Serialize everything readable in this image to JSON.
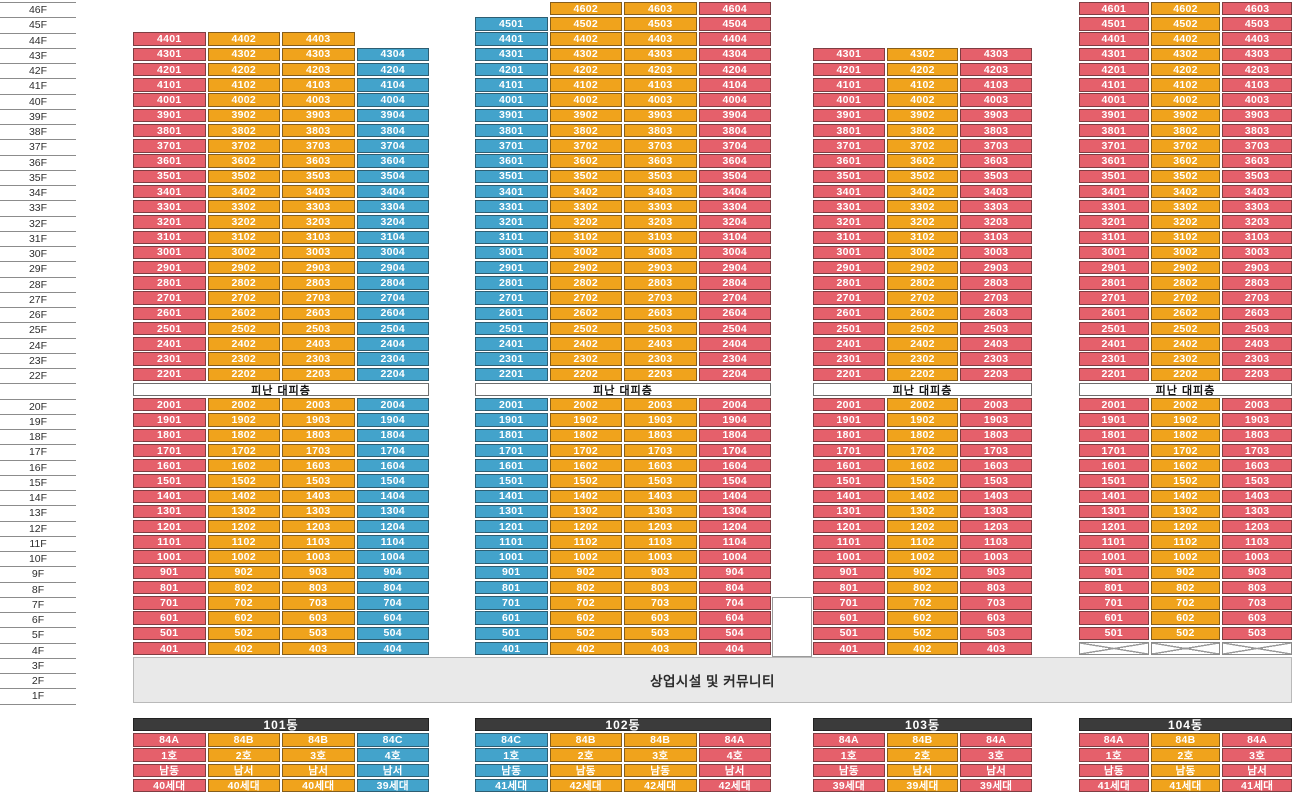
{
  "refuge_label": "피난 대피층",
  "commercial_label": "상업시설 및 커뮤니티",
  "colors": {
    "red": "#E5606B",
    "orange": "#F0A31C",
    "blue": "#43A3CB",
    "legend_header": "#3B3B3B",
    "commercial_bg": "#E9E9E9"
  },
  "floor_axis": [
    "46F",
    "45F",
    "44F",
    "43F",
    "42F",
    "41F",
    "40F",
    "39F",
    "38F",
    "37F",
    "36F",
    "35F",
    "34F",
    "33F",
    "32F",
    "31F",
    "30F",
    "29F",
    "28F",
    "27F",
    "26F",
    "25F",
    "24F",
    "23F",
    "22F",
    "",
    "20F",
    "19F",
    "18F",
    "17F",
    "16F",
    "15F",
    "14F",
    "13F",
    "12F",
    "11F",
    "10F",
    "9F",
    "8F",
    "7F",
    "6F",
    "5F",
    "4F",
    "3F",
    "2F",
    "1F"
  ],
  "buildings": [
    {
      "name": "101동",
      "top_floor": 44,
      "refuge_floor": 21,
      "col_colors": [
        "red",
        "orange",
        "orange",
        "blue"
      ],
      "upper_rows": [
        [
          "4401",
          "4402",
          "4403",
          null
        ],
        [
          "4301",
          "4302",
          "4303",
          "4304"
        ],
        [
          "4201",
          "4202",
          "4203",
          "4204"
        ],
        [
          "4101",
          "4102",
          "4103",
          "4104"
        ],
        [
          "4001",
          "4002",
          "4003",
          "4004"
        ],
        [
          "3901",
          "3902",
          "3903",
          "3904"
        ],
        [
          "3801",
          "3802",
          "3803",
          "3804"
        ],
        [
          "3701",
          "3702",
          "3703",
          "3704"
        ],
        [
          "3601",
          "3602",
          "3603",
          "3604"
        ],
        [
          "3501",
          "3502",
          "3503",
          "3504"
        ],
        [
          "3401",
          "3402",
          "3403",
          "3404"
        ],
        [
          "3301",
          "3302",
          "3303",
          "3304"
        ],
        [
          "3201",
          "3202",
          "3203",
          "3204"
        ],
        [
          "3101",
          "3102",
          "3103",
          "3104"
        ],
        [
          "3001",
          "3002",
          "3003",
          "3004"
        ],
        [
          "2901",
          "2902",
          "2903",
          "2904"
        ],
        [
          "2801",
          "2802",
          "2803",
          "2804"
        ],
        [
          "2701",
          "2702",
          "2703",
          "2704"
        ],
        [
          "2601",
          "2602",
          "2603",
          "2604"
        ],
        [
          "2501",
          "2502",
          "2503",
          "2504"
        ],
        [
          "2401",
          "2402",
          "2403",
          "2404"
        ],
        [
          "2301",
          "2302",
          "2303",
          "2304"
        ],
        [
          "2201",
          "2202",
          "2203",
          "2204"
        ]
      ],
      "lower_rows": [
        [
          "2001",
          "2002",
          "2003",
          "2004"
        ],
        [
          "1901",
          "1902",
          "1903",
          "1904"
        ],
        [
          "1801",
          "1802",
          "1803",
          "1804"
        ],
        [
          "1701",
          "1702",
          "1703",
          "1704"
        ],
        [
          "1601",
          "1602",
          "1603",
          "1604"
        ],
        [
          "1501",
          "1502",
          "1503",
          "1504"
        ],
        [
          "1401",
          "1402",
          "1403",
          "1404"
        ],
        [
          "1301",
          "1302",
          "1303",
          "1304"
        ],
        [
          "1201",
          "1202",
          "1203",
          "1204"
        ],
        [
          "1101",
          "1102",
          "1103",
          "1104"
        ],
        [
          "1001",
          "1002",
          "1003",
          "1004"
        ],
        [
          "901",
          "902",
          "903",
          "904"
        ],
        [
          "801",
          "802",
          "803",
          "804"
        ],
        [
          "701",
          "702",
          "703",
          "704"
        ],
        [
          "601",
          "602",
          "603",
          "604"
        ],
        [
          "501",
          "502",
          "503",
          "504"
        ],
        [
          "401",
          "402",
          "403",
          "404"
        ]
      ],
      "hatched_floors": [],
      "legend": {
        "types": [
          "84A",
          "84B",
          "84B",
          "84C"
        ],
        "units": [
          "1호",
          "2호",
          "3호",
          "4호"
        ],
        "directions": [
          "남동",
          "남서",
          "남서",
          "남서"
        ],
        "counts": [
          "40세대",
          "40세대",
          "40세대",
          "39세대"
        ]
      }
    },
    {
      "name": "102동",
      "top_floor": 46,
      "refuge_floor": 21,
      "col_colors": [
        "blue",
        "orange",
        "orange",
        "red"
      ],
      "upper_rows": [
        [
          null,
          "4602",
          "4603",
          "4604"
        ],
        [
          "4501",
          "4502",
          "4503",
          "4504"
        ],
        [
          "4401",
          "4402",
          "4403",
          "4404"
        ],
        [
          "4301",
          "4302",
          "4303",
          "4304"
        ],
        [
          "4201",
          "4202",
          "4203",
          "4204"
        ],
        [
          "4101",
          "4102",
          "4103",
          "4104"
        ],
        [
          "4001",
          "4002",
          "4003",
          "4004"
        ],
        [
          "3901",
          "3902",
          "3903",
          "3904"
        ],
        [
          "3801",
          "3802",
          "3803",
          "3804"
        ],
        [
          "3701",
          "3702",
          "3703",
          "3704"
        ],
        [
          "3601",
          "3602",
          "3603",
          "3604"
        ],
        [
          "3501",
          "3502",
          "3503",
          "3504"
        ],
        [
          "3401",
          "3402",
          "3403",
          "3404"
        ],
        [
          "3301",
          "3302",
          "3303",
          "3304"
        ],
        [
          "3201",
          "3202",
          "3203",
          "3204"
        ],
        [
          "3101",
          "3102",
          "3103",
          "3104"
        ],
        [
          "3001",
          "3002",
          "3003",
          "3004"
        ],
        [
          "2901",
          "2902",
          "2903",
          "2904"
        ],
        [
          "2801",
          "2802",
          "2803",
          "2804"
        ],
        [
          "2701",
          "2702",
          "2703",
          "2704"
        ],
        [
          "2601",
          "2602",
          "2603",
          "2604"
        ],
        [
          "2501",
          "2502",
          "2503",
          "2504"
        ],
        [
          "2401",
          "2402",
          "2403",
          "2404"
        ],
        [
          "2301",
          "2302",
          "2303",
          "2304"
        ],
        [
          "2201",
          "2202",
          "2203",
          "2204"
        ]
      ],
      "lower_rows": [
        [
          "2001",
          "2002",
          "2003",
          "2004"
        ],
        [
          "1901",
          "1902",
          "1903",
          "1904"
        ],
        [
          "1801",
          "1802",
          "1803",
          "1804"
        ],
        [
          "1701",
          "1702",
          "1703",
          "1704"
        ],
        [
          "1601",
          "1602",
          "1603",
          "1604"
        ],
        [
          "1501",
          "1502",
          "1503",
          "1504"
        ],
        [
          "1401",
          "1402",
          "1403",
          "1404"
        ],
        [
          "1301",
          "1302",
          "1303",
          "1304"
        ],
        [
          "1201",
          "1202",
          "1203",
          "1204"
        ],
        [
          "1101",
          "1102",
          "1103",
          "1104"
        ],
        [
          "1001",
          "1002",
          "1003",
          "1004"
        ],
        [
          "901",
          "902",
          "903",
          "904"
        ],
        [
          "801",
          "802",
          "803",
          "804"
        ],
        [
          "701",
          "702",
          "703",
          "704"
        ],
        [
          "601",
          "602",
          "603",
          "604"
        ],
        [
          "501",
          "502",
          "503",
          "504"
        ],
        [
          "401",
          "402",
          "403",
          "404"
        ]
      ],
      "hatched_floors": [],
      "legend": {
        "types": [
          "84C",
          "84B",
          "84B",
          "84A"
        ],
        "units": [
          "1호",
          "2호",
          "3호",
          "4호"
        ],
        "directions": [
          "남동",
          "남동",
          "남동",
          "남서"
        ],
        "counts": [
          "41세대",
          "42세대",
          "42세대",
          "42세대"
        ]
      }
    },
    {
      "name": "103동",
      "top_floor": 43,
      "refuge_floor": 21,
      "col_colors": [
        "red",
        "orange",
        "red"
      ],
      "upper_rows": [
        [
          "4301",
          "4302",
          "4303"
        ],
        [
          "4201",
          "4202",
          "4203"
        ],
        [
          "4101",
          "4102",
          "4103"
        ],
        [
          "4001",
          "4002",
          "4003"
        ],
        [
          "3901",
          "3902",
          "3903"
        ],
        [
          "3801",
          "3802",
          "3803"
        ],
        [
          "3701",
          "3702",
          "3703"
        ],
        [
          "3601",
          "3602",
          "3603"
        ],
        [
          "3501",
          "3502",
          "3503"
        ],
        [
          "3401",
          "3402",
          "3403"
        ],
        [
          "3301",
          "3302",
          "3303"
        ],
        [
          "3201",
          "3202",
          "3203"
        ],
        [
          "3101",
          "3102",
          "3103"
        ],
        [
          "3001",
          "3002",
          "3003"
        ],
        [
          "2901",
          "2902",
          "2903"
        ],
        [
          "2801",
          "2802",
          "2803"
        ],
        [
          "2701",
          "2702",
          "2703"
        ],
        [
          "2601",
          "2602",
          "2603"
        ],
        [
          "2501",
          "2502",
          "2503"
        ],
        [
          "2401",
          "2402",
          "2403"
        ],
        [
          "2301",
          "2302",
          "2303"
        ],
        [
          "2201",
          "2202",
          "2203"
        ]
      ],
      "lower_rows": [
        [
          "2001",
          "2002",
          "2003"
        ],
        [
          "1901",
          "1902",
          "1903"
        ],
        [
          "1801",
          "1802",
          "1803"
        ],
        [
          "1701",
          "1702",
          "1703"
        ],
        [
          "1601",
          "1602",
          "1603"
        ],
        [
          "1501",
          "1502",
          "1503"
        ],
        [
          "1401",
          "1402",
          "1403"
        ],
        [
          "1301",
          "1302",
          "1303"
        ],
        [
          "1201",
          "1202",
          "1203"
        ],
        [
          "1101",
          "1102",
          "1103"
        ],
        [
          "1001",
          "1002",
          "1003"
        ],
        [
          "901",
          "902",
          "903"
        ],
        [
          "801",
          "802",
          "803"
        ],
        [
          "701",
          "702",
          "703"
        ],
        [
          "601",
          "602",
          "603"
        ],
        [
          "501",
          "502",
          "503"
        ],
        [
          "401",
          "402",
          "403"
        ]
      ],
      "hatched_floors": [],
      "legend": {
        "types": [
          "84A",
          "84B",
          "84A"
        ],
        "units": [
          "1호",
          "2호",
          "3호"
        ],
        "directions": [
          "남동",
          "남서",
          "남서"
        ],
        "counts": [
          "39세대",
          "39세대",
          "39세대"
        ]
      }
    },
    {
      "name": "104동",
      "top_floor": 46,
      "refuge_floor": 21,
      "col_colors": [
        "red",
        "orange",
        "red"
      ],
      "upper_rows": [
        [
          "4601",
          "4602",
          "4603"
        ],
        [
          "4501",
          "4502",
          "4503"
        ],
        [
          "4401",
          "4402",
          "4403"
        ],
        [
          "4301",
          "4302",
          "4303"
        ],
        [
          "4201",
          "4202",
          "4203"
        ],
        [
          "4101",
          "4102",
          "4103"
        ],
        [
          "4001",
          "4002",
          "4003"
        ],
        [
          "3901",
          "3902",
          "3903"
        ],
        [
          "3801",
          "3802",
          "3803"
        ],
        [
          "3701",
          "3702",
          "3703"
        ],
        [
          "3601",
          "3602",
          "3603"
        ],
        [
          "3501",
          "3502",
          "3503"
        ],
        [
          "3401",
          "3402",
          "3403"
        ],
        [
          "3301",
          "3302",
          "3303"
        ],
        [
          "3201",
          "3202",
          "3203"
        ],
        [
          "3101",
          "3102",
          "3103"
        ],
        [
          "3001",
          "3002",
          "3003"
        ],
        [
          "2901",
          "2902",
          "2903"
        ],
        [
          "2801",
          "2802",
          "2803"
        ],
        [
          "2701",
          "2702",
          "2703"
        ],
        [
          "2601",
          "2602",
          "2603"
        ],
        [
          "2501",
          "2502",
          "2503"
        ],
        [
          "2401",
          "2402",
          "2403"
        ],
        [
          "2301",
          "2302",
          "2303"
        ],
        [
          "2201",
          "2202",
          "2203"
        ]
      ],
      "lower_rows": [
        [
          "2001",
          "2002",
          "2003"
        ],
        [
          "1901",
          "1902",
          "1903"
        ],
        [
          "1801",
          "1802",
          "1803"
        ],
        [
          "1701",
          "1702",
          "1703"
        ],
        [
          "1601",
          "1602",
          "1603"
        ],
        [
          "1501",
          "1502",
          "1503"
        ],
        [
          "1401",
          "1402",
          "1403"
        ],
        [
          "1301",
          "1302",
          "1303"
        ],
        [
          "1201",
          "1202",
          "1203"
        ],
        [
          "1101",
          "1102",
          "1103"
        ],
        [
          "1001",
          "1002",
          "1003"
        ],
        [
          "901",
          "902",
          "903"
        ],
        [
          "801",
          "802",
          "803"
        ],
        [
          "701",
          "702",
          "703"
        ],
        [
          "601",
          "602",
          "603"
        ],
        [
          "501",
          "502",
          "503"
        ]
      ],
      "hatched_floors": [
        4
      ],
      "legend": {
        "types": [
          "84A",
          "84B",
          "84A"
        ],
        "units": [
          "1호",
          "2호",
          "3호"
        ],
        "directions": [
          "남동",
          "남동",
          "남서"
        ],
        "counts": [
          "41세대",
          "41세대",
          "41세대"
        ]
      }
    }
  ]
}
